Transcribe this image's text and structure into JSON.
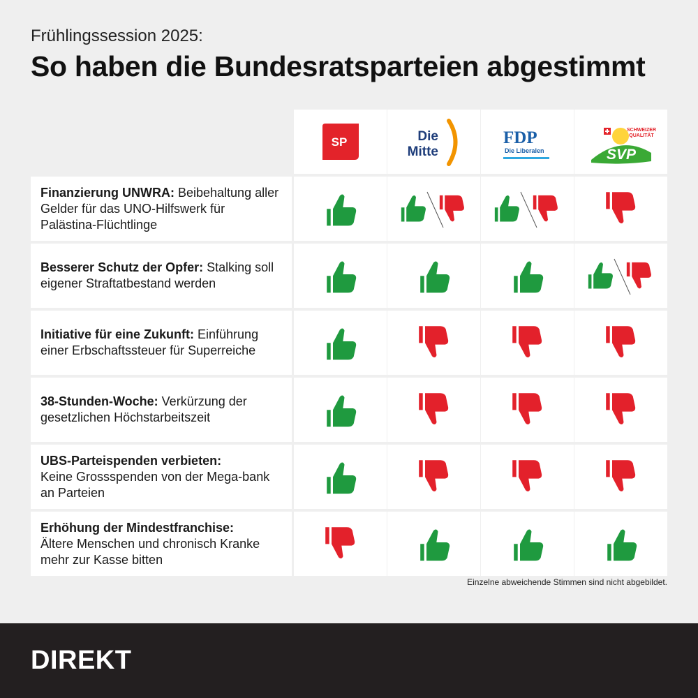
{
  "header": {
    "kicker": "Frühlingssession 2025:",
    "title": "So haben die Bundesratsparteien abgestimmt"
  },
  "parties": [
    {
      "id": "sp",
      "logo_text": "SP",
      "color": "#e3232a"
    },
    {
      "id": "mitte",
      "logo_line1": "Die",
      "logo_line2": "Mitte",
      "color": "#1e3d7a",
      "accent": "#f29400"
    },
    {
      "id": "fdp",
      "logo_text": "FDP",
      "subtitle": "Die Liberalen",
      "color": "#1a5fa8",
      "accent": "#2ea7e0"
    },
    {
      "id": "svp",
      "logo_text": "SVP",
      "tagline1": "SCHWEIZER",
      "tagline2": "QUALITÄT",
      "color": "#3aa935",
      "accent": "#e3232a"
    }
  ],
  "rows": [
    {
      "bold": "Finanzierung UNWRA:",
      "text": " Beibehaltung aller Gelder für das UNO-Hilfswerk für Palästina-Flüchtlinge",
      "votes": [
        "yes",
        "split",
        "split",
        "no"
      ]
    },
    {
      "bold": "Besserer Schutz der Opfer:",
      "text": " Stalking soll eigener Straftatbestand werden",
      "votes": [
        "yes",
        "yes",
        "yes",
        "split"
      ]
    },
    {
      "bold": "Initiative für eine Zukunft:",
      "text": " Einführung einer Erbschaftssteuer für Superreiche",
      "votes": [
        "yes",
        "no",
        "no",
        "no"
      ]
    },
    {
      "bold": "38-Stunden-Woche:",
      "text": " Verkürzung der gesetzlichen Höchstarbeitszeit",
      "votes": [
        "yes",
        "no",
        "no",
        "no"
      ]
    },
    {
      "bold": "UBS-Parteispenden verbieten:",
      "text": "Keine Grossspenden von der Mega-bank an Parteien",
      "votes": [
        "yes",
        "no",
        "no",
        "no"
      ]
    },
    {
      "bold": "Erhöhung der Mindestfranchise:",
      "text": "Ältere Menschen und chronisch Kranke mehr zur Kasse bitten",
      "votes": [
        "no",
        "yes",
        "yes",
        "yes"
      ]
    }
  ],
  "colors": {
    "yes": "#1f9a3f",
    "no": "#e3212b"
  },
  "footnote": "Einzelne abweichende Stimmen sind nicht abgebildet.",
  "footer": {
    "brand": "DIREKT"
  }
}
